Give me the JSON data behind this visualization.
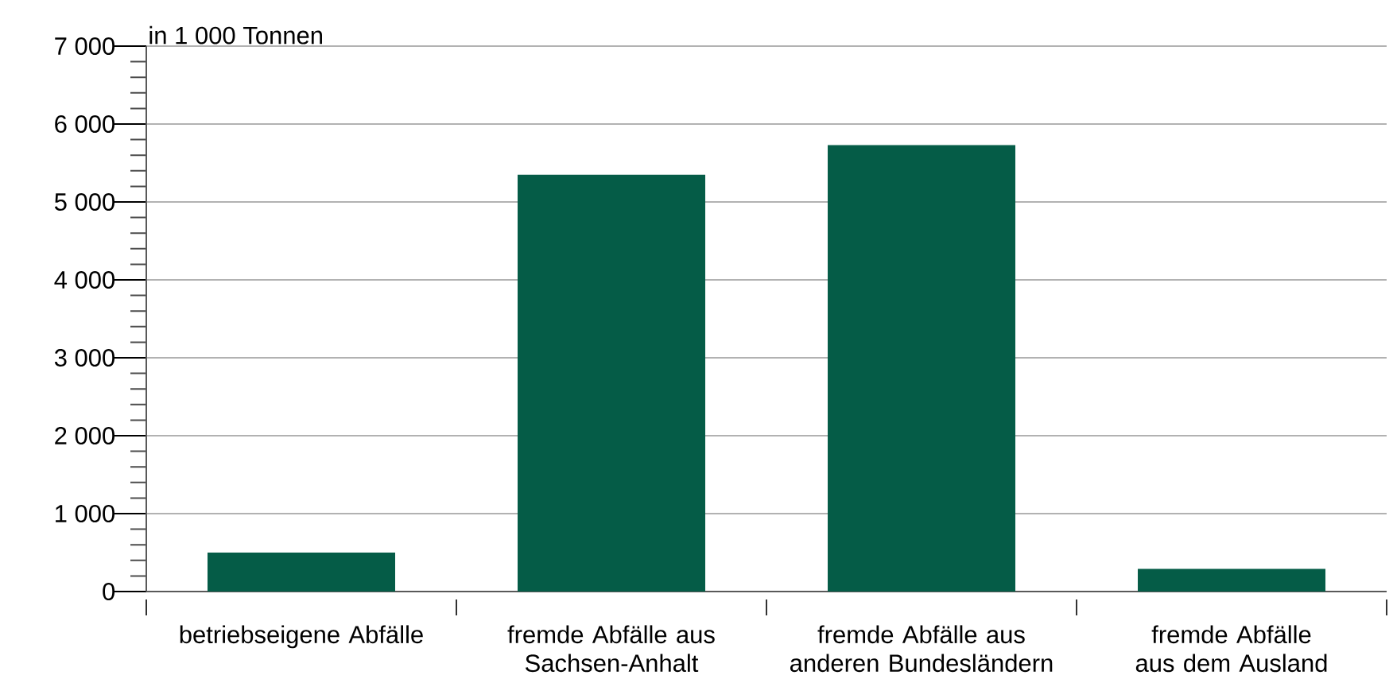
{
  "chart_data": {
    "type": "bar",
    "ylabel": "in 1 000 Tonnen",
    "categories": [
      "betriebseigene Abfälle",
      "fremde Abfälle aus Sachsen-Anhalt",
      "fremde Abfälle aus anderen Bundesländern",
      "fremde Abfälle aus dem Ausland"
    ],
    "values": [
      500,
      5350,
      5730,
      290
    ],
    "color": "#055c47",
    "ylim": [
      0,
      7000
    ],
    "yticks": [
      {
        "value": 0,
        "label": "0"
      },
      {
        "value": 1000,
        "label": "1 000"
      },
      {
        "value": 2000,
        "label": "2 000"
      },
      {
        "value": 3000,
        "label": "3 000"
      },
      {
        "value": 4000,
        "label": "4 000"
      },
      {
        "value": 5000,
        "label": "5 000"
      },
      {
        "value": 6000,
        "label": "6 000"
      },
      {
        "value": 7000,
        "label": "7 000"
      },
      {
        "value": 200,
        "label": null
      },
      {
        "value": 400,
        "label": null
      },
      {
        "value": 600,
        "label": null
      },
      {
        "value": 800,
        "label": null
      },
      {
        "value": 1200,
        "label": null
      },
      {
        "value": 1400,
        "label": null
      },
      {
        "value": 1600,
        "label": null
      },
      {
        "value": 1800,
        "label": null
      },
      {
        "value": 2200,
        "label": null
      },
      {
        "value": 2400,
        "label": null
      },
      {
        "value": 2600,
        "label": null
      },
      {
        "value": 2800,
        "label": null
      },
      {
        "value": 3200,
        "label": null
      },
      {
        "value": 3400,
        "label": null
      },
      {
        "value": 3600,
        "label": null
      },
      {
        "value": 3800,
        "label": null
      },
      {
        "value": 4200,
        "label": null
      },
      {
        "value": 4400,
        "label": null
      },
      {
        "value": 4600,
        "label": null
      },
      {
        "value": 4800,
        "label": null
      },
      {
        "value": 5200,
        "label": null
      },
      {
        "value": 5400,
        "label": null
      },
      {
        "value": 5600,
        "label": null
      },
      {
        "value": 5800,
        "label": null
      },
      {
        "value": 6200,
        "label": null
      },
      {
        "value": 6400,
        "label": null
      },
      {
        "value": 6600,
        "label": null
      },
      {
        "value": 6800,
        "label": null
      }
    ],
    "grid": "y"
  }
}
